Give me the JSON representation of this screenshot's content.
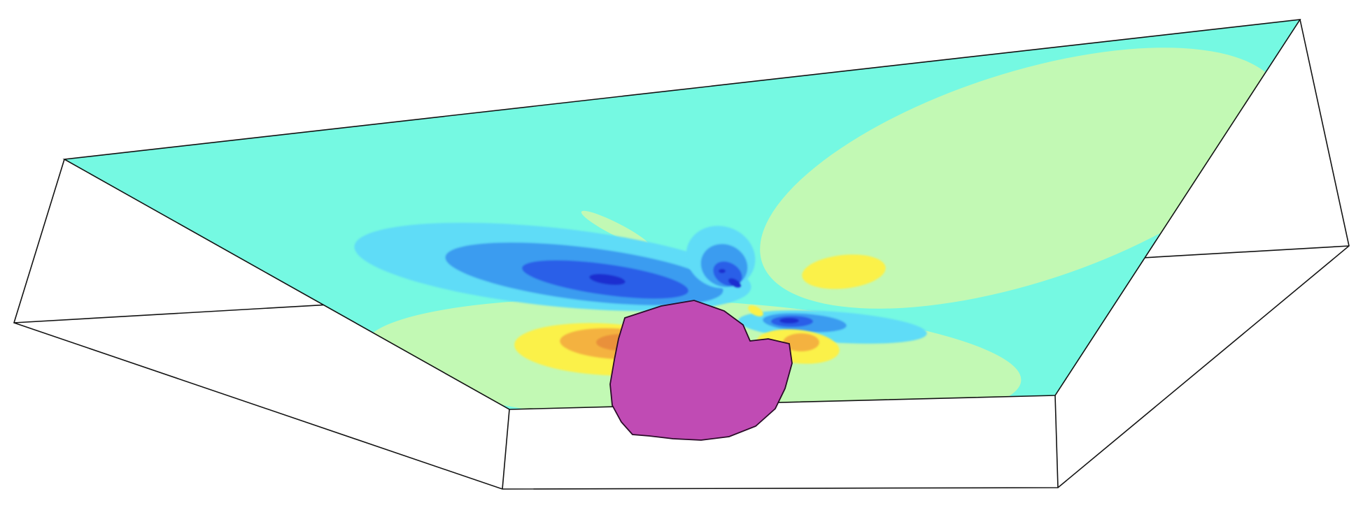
{
  "scene": {
    "colors": {
      "background": "#ffffff",
      "outline": "#111111",
      "plane_base": "#75f9e2",
      "plane_far_lobe": "#c2f9b4",
      "contour_light_blue": "#5fdcf7",
      "contour_mid_blue": "#3a9cf0",
      "contour_deep_blue": "#2a5ee8",
      "contour_core_blue": "#1a2fd0",
      "contour_yellow": "#fbf14a",
      "contour_orange": "#f4b23f",
      "contour_dark_orange": "#e9903a",
      "mesh_fill": "#c04bb4",
      "mesh_lines": "#2a0a28"
    },
    "icons": [
      "wireframe-box",
      "contour-slice-plane",
      "triangulated-mesh-body"
    ]
  }
}
